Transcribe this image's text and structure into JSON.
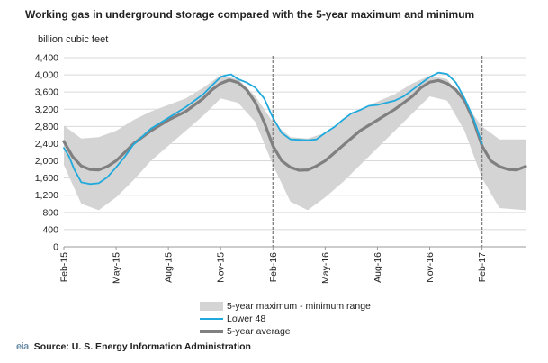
{
  "title": "Working gas in underground storage compared with the  5-year maximum and minimum",
  "unit_label": "billion  cubic feet",
  "source_text": "Source:  U. S. Energy Information Administration",
  "logo_text": "eia",
  "colors": {
    "range": "#d4d4d4",
    "lower48": "#20a9dc",
    "average": "#808080",
    "grid": "#d9d9d9",
    "divider": "#808080"
  },
  "chart_data": {
    "type": "line",
    "ylim": [
      0,
      4400
    ],
    "yticks": [
      0,
      400,
      800,
      1200,
      1600,
      2000,
      2400,
      2800,
      3200,
      3600,
      4000,
      4400
    ],
    "ytick_labels": [
      "0",
      "400",
      "800",
      "1,200",
      "1,600",
      "2,000",
      "2,400",
      "2,800",
      "3,200",
      "3,600",
      "4,000",
      "4,400"
    ],
    "xlim": [
      0,
      26.5
    ],
    "xticks": [
      0,
      3,
      6,
      9,
      12,
      15,
      18,
      21,
      24
    ],
    "xtick_labels": [
      "Feb-15",
      "May-15",
      "Aug-15",
      "Nov-15",
      "Feb-16",
      "May-16",
      "Aug-16",
      "Nov-16",
      "Feb-17"
    ],
    "dividers": [
      12,
      24
    ],
    "grid": true,
    "legend": "bottom",
    "series": [
      {
        "name": "5-year maximum - minimum range",
        "kind": "band",
        "x": [
          0,
          1,
          2,
          3,
          4,
          5,
          6,
          7,
          8,
          9,
          10,
          11,
          12,
          13,
          14,
          15,
          16,
          17,
          18,
          19,
          20,
          21,
          22,
          23,
          24,
          25,
          26.5
        ],
        "max": [
          2820,
          2520,
          2550,
          2700,
          2950,
          3150,
          3300,
          3450,
          3700,
          3990,
          3900,
          3500,
          2900,
          2550,
          2520,
          2650,
          2950,
          3200,
          3380,
          3550,
          3800,
          3980,
          3900,
          3350,
          2800,
          2500,
          2500
        ],
        "min": [
          1900,
          1000,
          850,
          1150,
          1550,
          2000,
          2350,
          2700,
          3050,
          3450,
          3350,
          2900,
          1900,
          1050,
          850,
          1150,
          1500,
          1900,
          2300,
          2700,
          3100,
          3500,
          3400,
          2700,
          1600,
          900,
          850
        ]
      },
      {
        "name": "Lower 48",
        "kind": "line",
        "x": [
          0,
          0.3,
          0.6,
          1,
          1.5,
          2,
          2.5,
          3,
          3.5,
          4,
          5,
          6,
          7,
          8,
          8.5,
          9,
          9.3,
          9.6,
          10,
          10.5,
          11,
          11.5,
          12,
          12.5,
          13,
          13.5,
          14,
          14.5,
          15,
          15.5,
          16,
          16.5,
          17,
          17.5,
          18,
          18.5,
          19,
          19.5,
          20,
          20.5,
          21,
          21.5,
          22,
          22.5,
          23,
          23.5,
          24
        ],
        "y": [
          2300,
          2100,
          1800,
          1500,
          1460,
          1480,
          1620,
          1850,
          2100,
          2380,
          2750,
          3000,
          3250,
          3550,
          3750,
          3950,
          3990,
          4010,
          3900,
          3820,
          3700,
          3450,
          3000,
          2650,
          2500,
          2490,
          2480,
          2500,
          2650,
          2780,
          2950,
          3100,
          3180,
          3280,
          3300,
          3350,
          3400,
          3500,
          3650,
          3800,
          3950,
          4050,
          4020,
          3820,
          3450,
          3000,
          2400
        ]
      },
      {
        "name": "5-year average",
        "kind": "line",
        "x": [
          0,
          0.5,
          1,
          1.5,
          2,
          2.5,
          3,
          3.5,
          4,
          5,
          6,
          7,
          8,
          8.5,
          9,
          9.5,
          10,
          10.5,
          11,
          11.5,
          12,
          12.5,
          13,
          13.5,
          14,
          14.5,
          15,
          16,
          17,
          18,
          19,
          20,
          20.5,
          21,
          21.5,
          22,
          22.5,
          23,
          23.5,
          24,
          24.5,
          25,
          25.5,
          26,
          26.5
        ],
        "y": [
          2450,
          2100,
          1880,
          1800,
          1790,
          1870,
          2000,
          2200,
          2400,
          2700,
          2950,
          3150,
          3450,
          3650,
          3800,
          3880,
          3820,
          3650,
          3350,
          2900,
          2350,
          2000,
          1850,
          1780,
          1790,
          1880,
          2000,
          2350,
          2700,
          2950,
          3200,
          3500,
          3700,
          3830,
          3870,
          3800,
          3650,
          3400,
          2950,
          2350,
          2000,
          1870,
          1800,
          1790,
          1870
        ]
      }
    ]
  }
}
